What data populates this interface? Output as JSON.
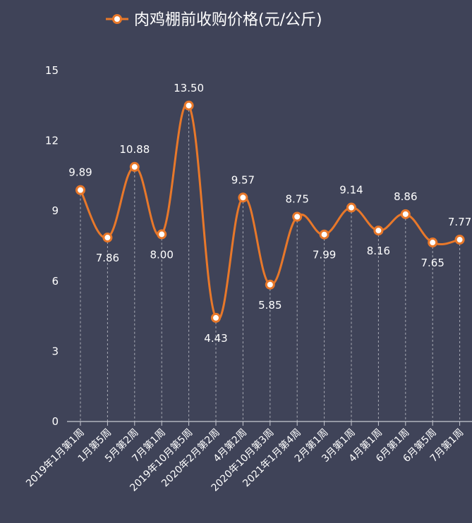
{
  "chart_data": {
    "type": "line",
    "title": "",
    "xlabel": "",
    "ylabel": "",
    "legend": {
      "entries": [
        "肉鸡棚前收购价格(元/公斤)"
      ],
      "placement": "top-center"
    },
    "ylim": [
      0,
      15
    ],
    "yticks": [
      "0",
      "3",
      "6",
      "9",
      "12",
      "15"
    ],
    "grid": false,
    "drop_lines": true,
    "smooth": true,
    "colors": {
      "line": "#e8782a",
      "background": "#3f4358",
      "text": "#ffffff",
      "drop_line": "#a9abb5"
    },
    "categories": [
      "2019年1月第1周",
      "1月第5周",
      "5月第2周",
      "7月第1周",
      "2019年10月第5周",
      "2020年2月第2周",
      "4月第2周",
      "2020年10月第3周",
      "2021年1月第4周",
      "2月第1周",
      "3月第1周",
      "4月第1周",
      "6月第1周",
      "6月第5周",
      "7月第1周"
    ],
    "series": [
      {
        "name": "肉鸡棚前收购价格(元/公斤)",
        "values": [
          9.89,
          7.86,
          10.88,
          8.0,
          13.5,
          4.43,
          9.57,
          5.85,
          8.75,
          7.99,
          9.14,
          8.16,
          8.86,
          7.65,
          7.77
        ],
        "labels": [
          "9.89",
          "7.86",
          "10.88",
          "8.00",
          "13.50",
          "4.43",
          "9.57",
          "5.85",
          "8.75",
          "7.99",
          "9.14",
          "8.16",
          "8.86",
          "7.65",
          "7.77"
        ],
        "label_side": [
          "above",
          "below",
          "above",
          "below",
          "above",
          "below",
          "above",
          "below",
          "above",
          "below",
          "above",
          "below",
          "above",
          "below",
          "above"
        ]
      }
    ]
  }
}
